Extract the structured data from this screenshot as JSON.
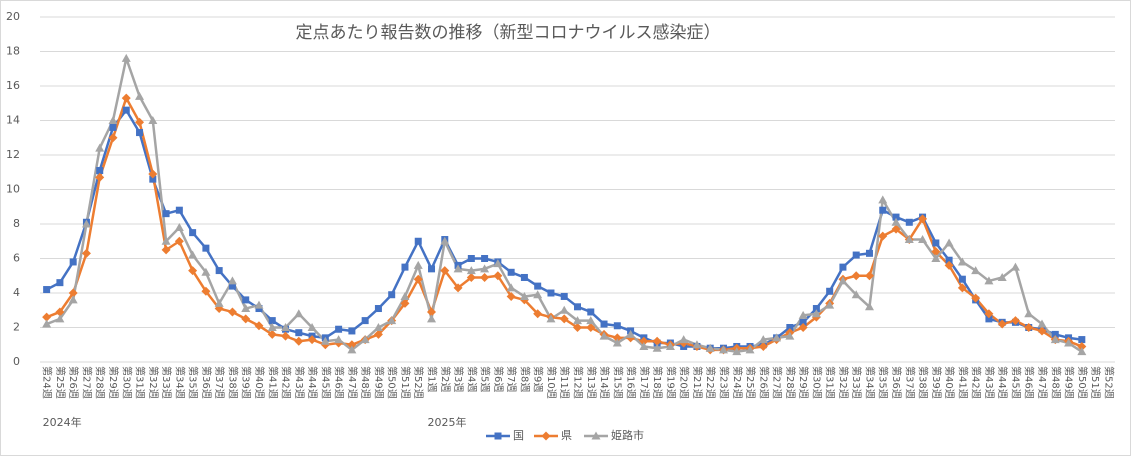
{
  "chart_data": {
    "type": "line",
    "title": "定点あたり報告数の推移（新型コロナウイルス感染症）",
    "categories": [
      "第24週",
      "第25週",
      "第26週",
      "第27週",
      "第28週",
      "第29週",
      "第30週",
      "第31週",
      "第32週",
      "第33週",
      "第34週",
      "第35週",
      "第36週",
      "第37週",
      "第38週",
      "第39週",
      "第40週",
      "第41週",
      "第42週",
      "第43週",
      "第44週",
      "第45週",
      "第46週",
      "第47週",
      "第48週",
      "第49週",
      "第50週",
      "第51週",
      "第52週",
      "第1週",
      "第2週",
      "第3週",
      "第4週",
      "第5週",
      "第6週",
      "第7週",
      "第8週",
      "第9週",
      "第10週",
      "第11週",
      "第12週",
      "第13週",
      "第14週",
      "第15週",
      "第16週",
      "第17週",
      "第18週",
      "第19週",
      "第20週",
      "第21週",
      "第22週",
      "第23週",
      "第24週",
      "第25週",
      "第26週",
      "第27週",
      "第28週",
      "第29週",
      "第30週",
      "第31週",
      "第32週",
      "第33週",
      "第34週",
      "第35週",
      "第36週",
      "第37週",
      "第38週",
      "第39週",
      "第40週",
      "第41週",
      "第42週",
      "第43週",
      "第44週",
      "第45週",
      "第46週",
      "第47週",
      "第48週",
      "第49週",
      "第50週",
      "第51週",
      "第52週"
    ],
    "year_labels": [
      "2024年",
      "2025年"
    ],
    "series": [
      {
        "name": "国",
        "color": "#4472c4",
        "marker": "square",
        "values": [
          4.2,
          4.6,
          5.8,
          8.1,
          11.1,
          13.6,
          14.6,
          13.3,
          10.6,
          8.6,
          8.8,
          7.5,
          6.6,
          5.3,
          4.4,
          3.6,
          3.1,
          2.4,
          1.9,
          1.7,
          1.5,
          1.4,
          1.9,
          1.8,
          2.4,
          3.1,
          3.9,
          5.5,
          7.0,
          5.4,
          7.1,
          5.6,
          6.0,
          6.0,
          5.8,
          5.2,
          4.9,
          4.4,
          4.0,
          3.8,
          3.2,
          2.9,
          2.2,
          2.1,
          1.8,
          1.4,
          1.1,
          1.1,
          0.9,
          0.9,
          0.8,
          0.8,
          0.9,
          0.9,
          1.0,
          1.4,
          2.0,
          2.3,
          3.1,
          4.1,
          5.5,
          6.2,
          6.3,
          8.8,
          8.4,
          8.1,
          8.4,
          6.9,
          5.9,
          4.8,
          3.6,
          2.5,
          2.3,
          2.3,
          2.0,
          1.9,
          1.6,
          1.4,
          1.3,
          null,
          null
        ]
      },
      {
        "name": "県",
        "color": "#ed7d31",
        "marker": "diamond",
        "values": [
          2.6,
          2.9,
          4.0,
          6.3,
          10.7,
          13.0,
          15.3,
          13.9,
          10.9,
          6.5,
          7.0,
          5.3,
          4.1,
          3.1,
          2.9,
          2.5,
          2.1,
          1.6,
          1.5,
          1.2,
          1.3,
          1.0,
          1.1,
          1.0,
          1.3,
          1.6,
          2.4,
          3.4,
          4.8,
          2.9,
          5.3,
          4.3,
          4.9,
          4.9,
          5.0,
          3.8,
          3.6,
          2.8,
          2.6,
          2.5,
          2.0,
          2.0,
          1.6,
          1.4,
          1.4,
          1.2,
          1.2,
          1.0,
          1.1,
          0.9,
          0.7,
          0.7,
          0.8,
          0.8,
          0.9,
          1.3,
          1.7,
          2.0,
          2.6,
          3.4,
          4.8,
          5.0,
          5.0,
          7.3,
          7.7,
          7.1,
          8.3,
          6.4,
          5.6,
          4.3,
          3.7,
          2.8,
          2.2,
          2.4,
          2.0,
          1.8,
          1.3,
          1.2,
          0.9,
          null,
          null
        ]
      },
      {
        "name": "姫路市",
        "color": "#a5a5a5",
        "marker": "triangle",
        "values": [
          2.2,
          2.5,
          3.6,
          8.0,
          12.4,
          14.0,
          17.6,
          15.4,
          14.0,
          7.0,
          7.8,
          6.2,
          5.2,
          3.4,
          4.7,
          3.1,
          3.3,
          2.0,
          2.0,
          2.8,
          2.0,
          1.2,
          1.3,
          0.7,
          1.3,
          2.0,
          2.4,
          3.8,
          5.6,
          2.5,
          7.0,
          5.4,
          5.3,
          5.4,
          5.7,
          4.3,
          3.8,
          3.9,
          2.5,
          3.0,
          2.4,
          2.4,
          1.5,
          1.1,
          1.6,
          0.9,
          0.8,
          0.9,
          1.3,
          1.0,
          0.8,
          0.7,
          0.6,
          0.7,
          1.3,
          1.4,
          1.5,
          2.7,
          2.8,
          3.3,
          4.7,
          3.9,
          3.2,
          9.4,
          8.1,
          7.1,
          7.1,
          6.0,
          6.9,
          5.8,
          5.3,
          4.7,
          4.9,
          5.5,
          2.8,
          2.2,
          1.3,
          1.1,
          0.6,
          null,
          null
        ]
      }
    ],
    "ylim": [
      0,
      20
    ],
    "yticks": [
      0,
      2,
      4,
      6,
      8,
      10,
      12,
      14,
      16,
      18,
      20
    ],
    "grid": true,
    "legend": "bottom"
  }
}
